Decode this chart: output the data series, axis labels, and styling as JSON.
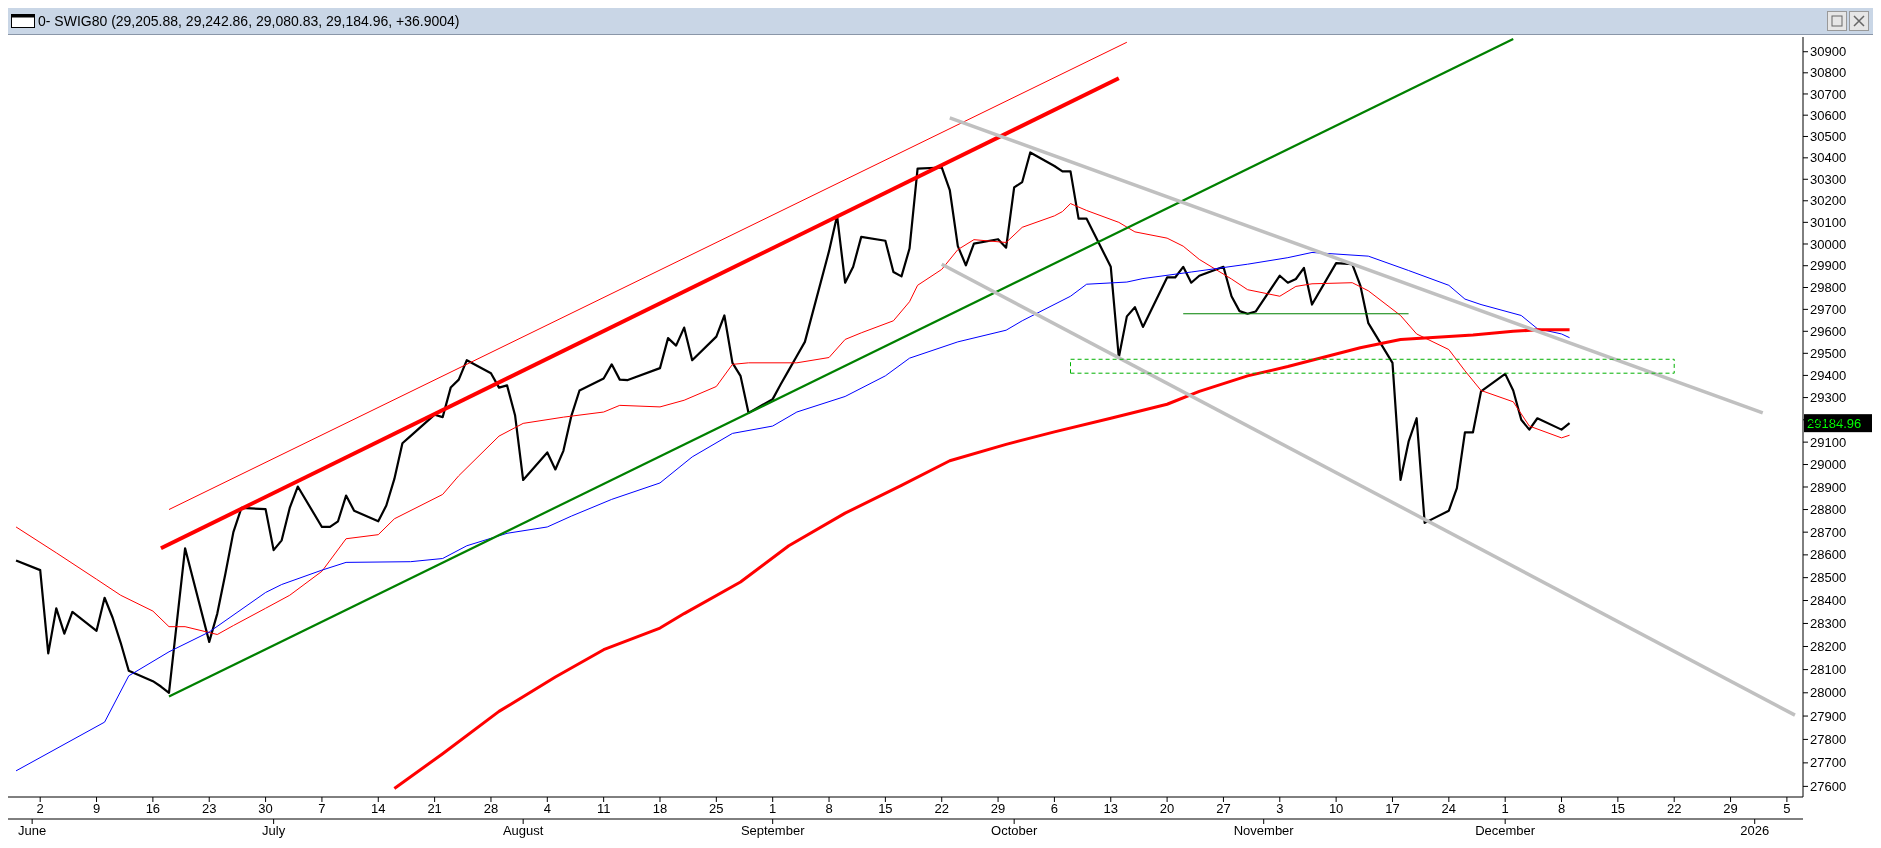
{
  "chart_data": {
    "type": "line",
    "title": "0- SWIG80 (29,205.88, 29,242.86, 29,080.83, 29,184.96, +36.9004)",
    "log": true,
    "grid": false,
    "legend": false,
    "marker": "none",
    "line_style": "solid",
    "xlim": [
      "2025-05-29",
      "2026-01-07"
    ],
    "xticks": [
      {
        "value": "2025-06-02",
        "label": "2"
      },
      {
        "value": "2025-06-09",
        "label": "9"
      },
      {
        "value": "2025-06-16",
        "label": "16"
      },
      {
        "value": "2025-06-23",
        "label": "23"
      },
      {
        "value": "2025-06-30",
        "label": "30"
      },
      {
        "value": "2025-07-07",
        "label": "7"
      },
      {
        "value": "2025-07-14",
        "label": "14"
      },
      {
        "value": "2025-07-21",
        "label": "21"
      },
      {
        "value": "2025-07-28",
        "label": "28"
      },
      {
        "value": "2025-08-04",
        "label": "4"
      },
      {
        "value": "2025-08-11",
        "label": "11"
      },
      {
        "value": "2025-08-18",
        "label": "18"
      },
      {
        "value": "2025-08-25",
        "label": "25"
      },
      {
        "value": "2025-09-01",
        "label": "1"
      },
      {
        "value": "2025-09-08",
        "label": "8"
      },
      {
        "value": "2025-09-15",
        "label": "15"
      },
      {
        "value": "2025-09-22",
        "label": "22"
      },
      {
        "value": "2025-09-29",
        "label": "29"
      },
      {
        "value": "2025-10-06",
        "label": "6"
      },
      {
        "value": "2025-10-13",
        "label": "13"
      },
      {
        "value": "2025-10-20",
        "label": "20"
      },
      {
        "value": "2025-10-27",
        "label": "27"
      },
      {
        "value": "2025-11-03",
        "label": "3"
      },
      {
        "value": "2025-11-10",
        "label": "10"
      },
      {
        "value": "2025-11-17",
        "label": "17"
      },
      {
        "value": "2025-11-24",
        "label": "24"
      },
      {
        "value": "2025-12-01",
        "label": "1"
      },
      {
        "value": "2025-12-08",
        "label": "8"
      },
      {
        "value": "2025-12-15",
        "label": "15"
      },
      {
        "value": "2025-12-22",
        "label": "22"
      },
      {
        "value": "2025-12-29",
        "label": "29"
      },
      {
        "value": "2026-01-05",
        "label": "5"
      }
    ],
    "x2lim": [
      "2025-05-29",
      "2026-01-07"
    ],
    "x2ticks": [
      {
        "value": "2025-06-01",
        "label": "June"
      },
      {
        "value": "2025-07-01",
        "label": "July"
      },
      {
        "value": "2025-08-01",
        "label": "August"
      },
      {
        "value": "2025-09-01",
        "label": "September"
      },
      {
        "value": "2025-10-01",
        "label": "October"
      },
      {
        "value": "2025-11-01",
        "label": "November"
      },
      {
        "value": "2025-12-01",
        "label": "December"
      },
      {
        "value": "2026-01-01",
        "label": "2026"
      }
    ],
    "ylim": [
      27555,
      30970
    ],
    "yticks": [
      27600,
      27700,
      27800,
      27900,
      28000,
      28100,
      28200,
      28300,
      28400,
      28500,
      28600,
      28700,
      28800,
      28900,
      29000,
      29100,
      29200,
      29300,
      29400,
      29500,
      29600,
      29700,
      29800,
      29900,
      30000,
      30100,
      30200,
      30300,
      30400,
      30500,
      30600,
      30700,
      30800,
      30900
    ],
    "annotations": [
      "29184.96"
    ],
    "series": [
      {
        "color": "#000000",
        "x": [
          "2025-05-30",
          "2025-06-02",
          "2025-06-03",
          "2025-06-04",
          "2025-06-05",
          "2025-06-06",
          "2025-06-09",
          "2025-06-10",
          "2025-06-11",
          "2025-06-12",
          "2025-06-13",
          "2025-06-16",
          "2025-06-17",
          "2025-06-18",
          "2025-06-20",
          "2025-06-23",
          "2025-06-24",
          "2025-06-25",
          "2025-06-26",
          "2025-06-27",
          "2025-06-30",
          "2025-07-01",
          "2025-07-02",
          "2025-07-03",
          "2025-07-04",
          "2025-07-07",
          "2025-07-08",
          "2025-07-09",
          "2025-07-10",
          "2025-07-11",
          "2025-07-14",
          "2025-07-15",
          "2025-07-16",
          "2025-07-17",
          "2025-07-18",
          "2025-07-21",
          "2025-07-22",
          "2025-07-23",
          "2025-07-24",
          "2025-07-25",
          "2025-07-28",
          "2025-07-29",
          "2025-07-30",
          "2025-07-31",
          "2025-08-01",
          "2025-08-04",
          "2025-08-05",
          "2025-08-06",
          "2025-08-07",
          "2025-08-08",
          "2025-08-11",
          "2025-08-12",
          "2025-08-13",
          "2025-08-14",
          "2025-08-18",
          "2025-08-19",
          "2025-08-20",
          "2025-08-21",
          "2025-08-22",
          "2025-08-25",
          "2025-08-26",
          "2025-08-27",
          "2025-08-28",
          "2025-08-29",
          "2025-09-01",
          "2025-09-02",
          "2025-09-03",
          "2025-09-04",
          "2025-09-05",
          "2025-09-08",
          "2025-09-09",
          "2025-09-10",
          "2025-09-11",
          "2025-09-12",
          "2025-09-15",
          "2025-09-16",
          "2025-09-17",
          "2025-09-18",
          "2025-09-19",
          "2025-09-22",
          "2025-09-23",
          "2025-09-24",
          "2025-09-25",
          "2025-09-26",
          "2025-09-29",
          "2025-09-30",
          "2025-10-01",
          "2025-10-02",
          "2025-10-03",
          "2025-10-06",
          "2025-10-07",
          "2025-10-08",
          "2025-10-09",
          "2025-10-10",
          "2025-10-13",
          "2025-10-14",
          "2025-10-15",
          "2025-10-16",
          "2025-10-17",
          "2025-10-20",
          "2025-10-21",
          "2025-10-22",
          "2025-10-23",
          "2025-10-24",
          "2025-10-27",
          "2025-10-28",
          "2025-10-29",
          "2025-10-30",
          "2025-10-31",
          "2025-11-03",
          "2025-11-04",
          "2025-11-05",
          "2025-11-06",
          "2025-11-07",
          "2025-11-10",
          "2025-11-12",
          "2025-11-13",
          "2025-11-14",
          "2025-11-17",
          "2025-11-18",
          "2025-11-19",
          "2025-11-20",
          "2025-11-21",
          "2025-11-24",
          "2025-11-25",
          "2025-11-26",
          "2025-11-27",
          "2025-11-28",
          "2025-12-01",
          "2025-12-02",
          "2025-12-03",
          "2025-12-04",
          "2025-12-05",
          "2025-12-08",
          "2025-12-09"
        ],
        "values": [
          28575,
          28533,
          28170,
          28366,
          28256,
          28350,
          28268,
          28412,
          28325,
          28216,
          28095,
          28050,
          28027,
          28000,
          28629,
          28220,
          28343,
          28516,
          28700,
          28807,
          28802,
          28621,
          28664,
          28807,
          28902,
          28723,
          28723,
          28748,
          28862,
          28795,
          28748,
          28818,
          28936,
          29095,
          29127,
          29223,
          29212,
          29345,
          29381,
          29469,
          29410,
          29345,
          29355,
          29219,
          28931,
          29054,
          28978,
          29061,
          29219,
          29332,
          29386,
          29450,
          29381,
          29379,
          29433,
          29569,
          29535,
          29617,
          29469,
          29576,
          29672,
          29457,
          29398,
          29231,
          29293,
          29360,
          29424,
          29488,
          29552,
          29967,
          30130,
          29822,
          29895,
          30033,
          30015,
          29871,
          29851,
          29979,
          30350,
          30355,
          30250,
          29990,
          29902,
          30002,
          30022,
          29983,
          30262,
          30287,
          30425,
          30362,
          30337,
          30337,
          30117,
          30117,
          29895,
          29481,
          29668,
          29710,
          29620,
          29846,
          29846,
          29895,
          29822,
          29854,
          29895,
          29760,
          29692,
          29680,
          29690,
          29854,
          29822,
          29839,
          29890,
          29722,
          29912,
          29907,
          29810,
          29637,
          29457,
          28931,
          29102,
          29207,
          28741,
          28795,
          28895,
          29144,
          29144,
          29328,
          29407,
          29332,
          29200,
          29156,
          29207,
          29156,
          29184.96
        ]
      },
      {
        "color": "#ff0000",
        "x": [
          "2025-05-30",
          "2025-06-04",
          "2025-06-09",
          "2025-06-12",
          "2025-06-16",
          "2025-06-18",
          "2025-06-20",
          "2025-06-24",
          "2025-06-26",
          "2025-06-30",
          "2025-07-03",
          "2025-07-07",
          "2025-07-10",
          "2025-07-14",
          "2025-07-16",
          "2025-07-22",
          "2025-07-24",
          "2025-07-29",
          "2025-08-01",
          "2025-08-06",
          "2025-08-11",
          "2025-08-13",
          "2025-08-18",
          "2025-08-21",
          "2025-08-25",
          "2025-08-27",
          "2025-08-29",
          "2025-09-04",
          "2025-09-08",
          "2025-09-10",
          "2025-09-12",
          "2025-09-16",
          "2025-09-18",
          "2025-09-19",
          "2025-09-22",
          "2025-09-24",
          "2025-09-26",
          "2025-09-30",
          "2025-10-02",
          "2025-10-06",
          "2025-10-07",
          "2025-10-08",
          "2025-10-10",
          "2025-10-14",
          "2025-10-16",
          "2025-10-20",
          "2025-10-22",
          "2025-10-24",
          "2025-10-28",
          "2025-10-30",
          "2025-11-03",
          "2025-11-05",
          "2025-11-07",
          "2025-11-12",
          "2025-11-14",
          "2025-11-18",
          "2025-11-20",
          "2025-11-24",
          "2025-11-26",
          "2025-11-28",
          "2025-12-02",
          "2025-12-04",
          "2025-12-08",
          "2025-12-09"
        ],
        "values": [
          28723,
          28609,
          28493,
          28423,
          28354,
          28286,
          28286,
          28252,
          28291,
          28366,
          28423,
          28528,
          28671,
          28689,
          28759,
          28867,
          28950,
          29127,
          29184,
          29212,
          29235,
          29265,
          29258,
          29288,
          29350,
          29450,
          29457,
          29457,
          29481,
          29563,
          29593,
          29648,
          29735,
          29810,
          29883,
          29974,
          30020,
          30007,
          30077,
          30130,
          30150,
          30187,
          30155,
          30100,
          30056,
          30027,
          29990,
          29929,
          29839,
          29790,
          29760,
          29805,
          29817,
          29822,
          29785,
          29672,
          29588,
          29517,
          29421,
          29332,
          29281,
          29172,
          29119,
          29131
        ]
      },
      {
        "color": "#0000ff",
        "x": [
          "2025-05-30",
          "2025-06-10",
          "2025-06-13",
          "2025-06-18",
          "2025-06-23",
          "2025-06-30",
          "2025-07-02",
          "2025-07-07",
          "2025-07-10",
          "2025-07-18",
          "2025-07-22",
          "2025-07-25",
          "2025-07-30",
          "2025-08-04",
          "2025-08-07",
          "2025-08-12",
          "2025-08-18",
          "2025-08-22",
          "2025-08-27",
          "2025-09-01",
          "2025-09-04",
          "2025-09-10",
          "2025-09-15",
          "2025-09-18",
          "2025-09-24",
          "2025-09-30",
          "2025-10-02",
          "2025-10-08",
          "2025-10-10",
          "2025-10-15",
          "2025-10-17",
          "2025-10-23",
          "2025-10-30",
          "2025-11-04",
          "2025-11-07",
          "2025-11-14",
          "2025-11-19",
          "2025-11-24",
          "2025-11-26",
          "2025-11-28",
          "2025-12-03",
          "2025-12-05",
          "2025-12-08",
          "2025-12-09"
        ],
        "values": [
          27666,
          27874,
          28073,
          28177,
          28263,
          28435,
          28470,
          28533,
          28567,
          28570,
          28584,
          28640,
          28695,
          28723,
          28771,
          28845,
          28918,
          29034,
          29139,
          29172,
          29235,
          29305,
          29398,
          29478,
          29552,
          29605,
          29648,
          29760,
          29815,
          29825,
          29841,
          29871,
          29907,
          29937,
          29961,
          29944,
          29878,
          29810,
          29747,
          29722,
          29672,
          29612,
          29588,
          29571
        ]
      },
      {
        "color": "#ff0000",
        "x": [
          "2025-07-16",
          "2025-07-22",
          "2025-07-29",
          "2025-08-05",
          "2025-08-11",
          "2025-08-18",
          "2025-08-21",
          "2025-08-28",
          "2025-09-03",
          "2025-09-10",
          "2025-09-17",
          "2025-09-23",
          "2025-09-30",
          "2025-10-06",
          "2025-10-13",
          "2025-10-20",
          "2025-10-24",
          "2025-10-30",
          "2025-11-04",
          "2025-11-13",
          "2025-11-18",
          "2025-11-27",
          "2025-12-02",
          "2025-12-05",
          "2025-12-09"
        ],
        "values": [
          27591,
          27739,
          27920,
          28068,
          28186,
          28280,
          28343,
          28481,
          28640,
          28784,
          28907,
          29017,
          29090,
          29146,
          29207,
          29270,
          29328,
          29398,
          29440,
          29525,
          29563,
          29583,
          29600,
          29607,
          29607
        ]
      },
      {
        "color": "#ff0000",
        "x": [
          "2025-06-17",
          "2025-10-14"
        ],
        "values": [
          28629,
          30774
        ]
      },
      {
        "color": "#ff0000",
        "x": [
          "2025-06-18",
          "2025-10-15"
        ],
        "values": [
          28800,
          30945
        ]
      },
      {
        "color": "#008000",
        "x": [
          "2025-06-18",
          "2025-12-02"
        ],
        "values": [
          27984,
          30960
        ]
      },
      {
        "color": "#c0c0c0",
        "x": [
          "2025-09-23",
          "2026-01-02"
        ],
        "values": [
          30587,
          29231
        ]
      },
      {
        "color": "#c0c0c0",
        "x": [
          "2025-09-22",
          "2026-01-06"
        ],
        "values": [
          29907,
          27904
        ]
      },
      {
        "color": "#008000",
        "x": [
          "2025-10-22",
          "2025-11-19"
        ],
        "values": [
          29680,
          29680
        ]
      },
      {
        "color": "#00b000",
        "line_style": "dashed",
        "x": [
          "2025-10-08",
          "2025-10-08",
          "2025-12-22"
        ],
        "values": [
          29410,
          29473,
          29473
        ]
      },
      {
        "color": "#00b000",
        "line_style": "dashed",
        "x": [
          "2025-10-08",
          "2025-12-22",
          "2025-12-22"
        ],
        "values": [
          29410,
          29410,
          29473
        ]
      }
    ]
  }
}
